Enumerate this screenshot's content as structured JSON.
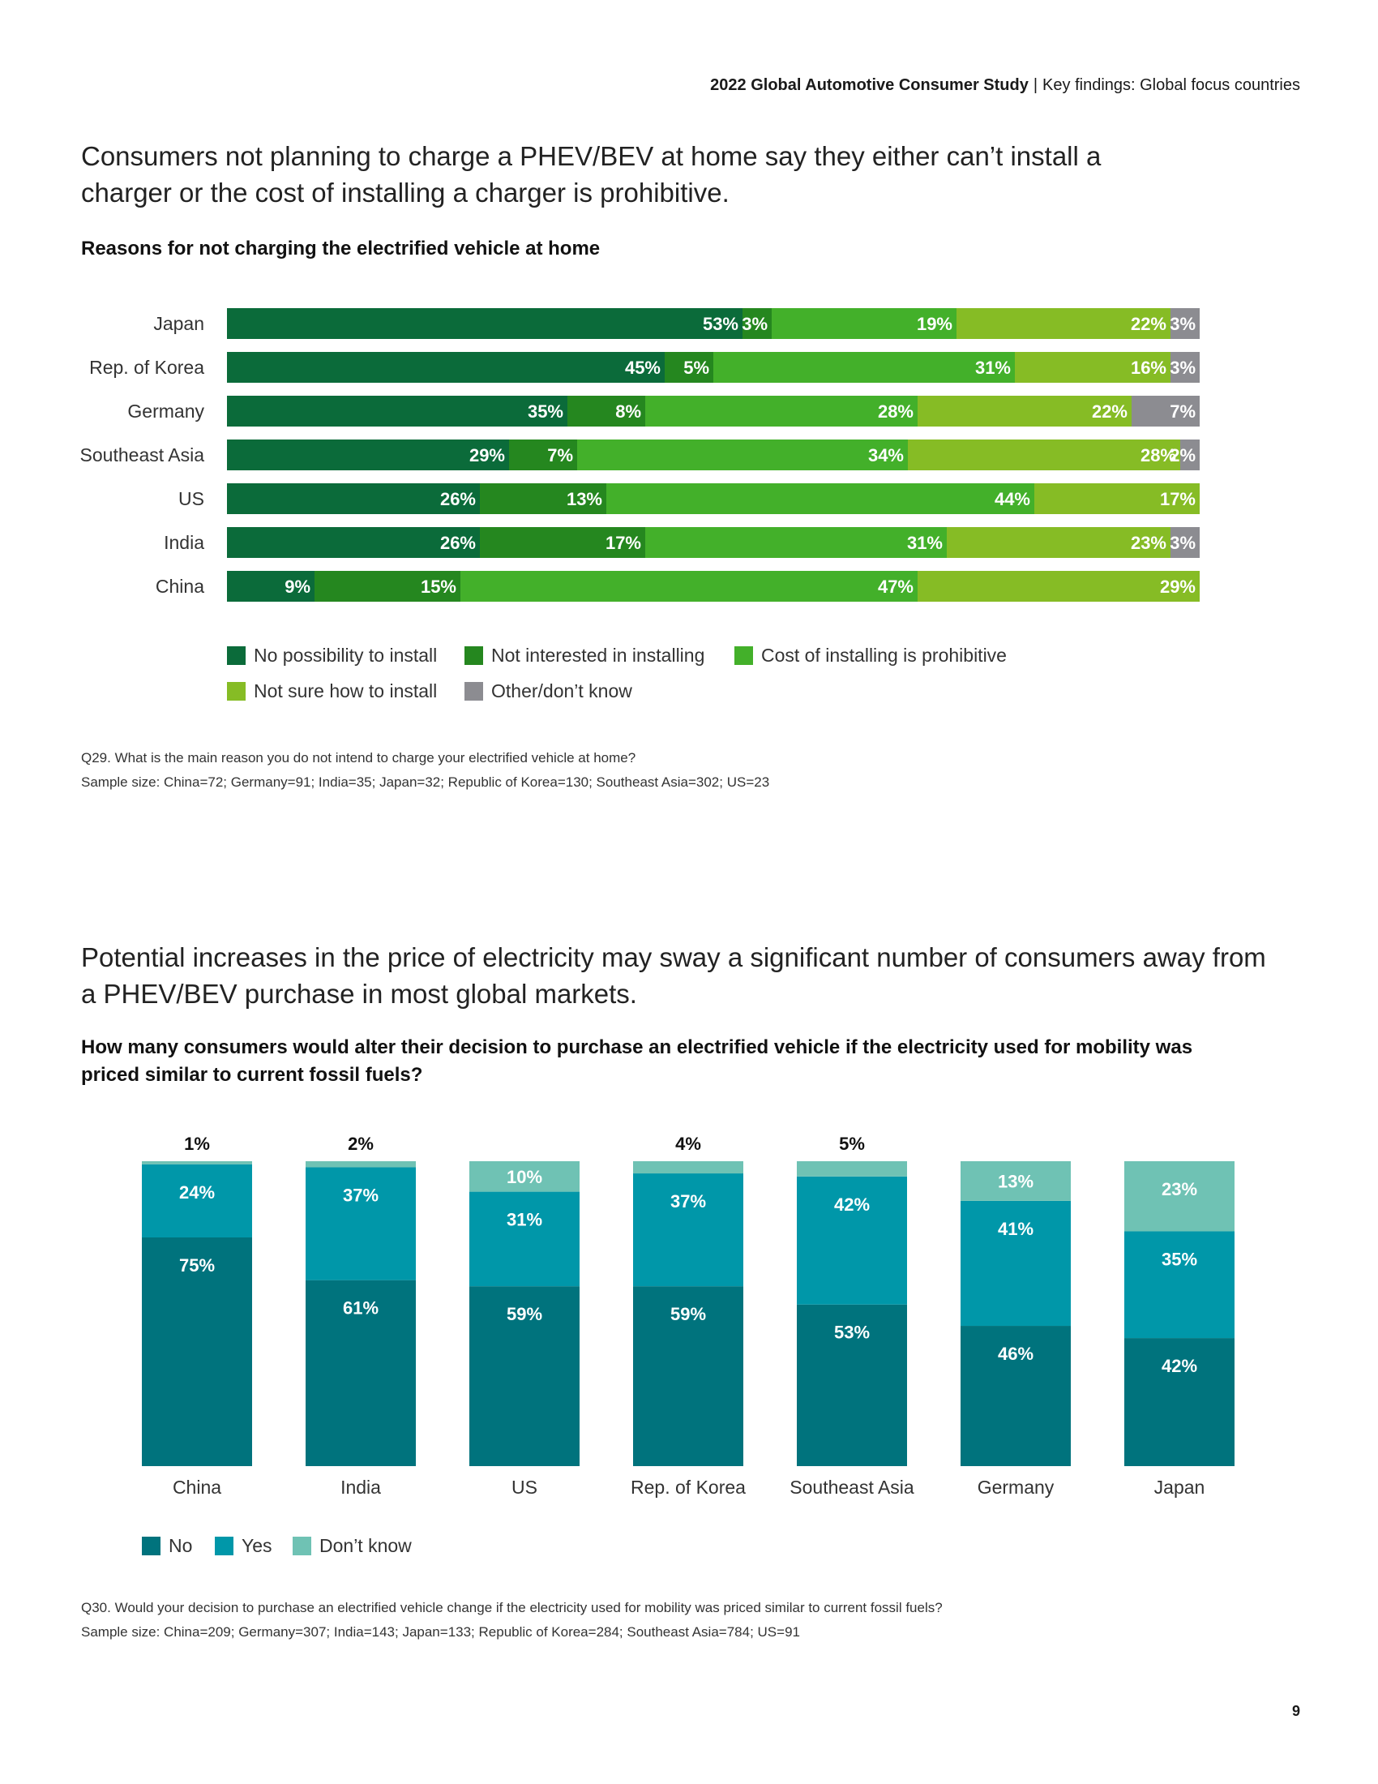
{
  "header": {
    "study": "2022 Global Automotive Consumer Study",
    "separator": "|",
    "section": "Key findings: Global focus countries"
  },
  "section1": {
    "headline_line1": "Consumers not planning to charge a PHEV/BEV at home say they either can’t install a",
    "headline_line2": "charger or the cost of installing a charger is prohibitive.",
    "subtitle": "Reasons for not charging the electrified vehicle at home",
    "note_question": "Q29. What is the main reason you do not intend to charge your electrified vehicle at home?",
    "note_sample": "Sample size: China=72; Germany=91; India=35; Japan=32; Republic of Korea=130; Southeast Asia=302; US=23"
  },
  "section2": {
    "headline_line1": "Potential increases in the price of electricity may sway a significant number of consumers away from",
    "headline_line2": "a PHEV/BEV purchase in most global markets.",
    "subtitle_line1": "How many consumers would alter their decision to purchase an electrified vehicle if the electricity used for mobility was",
    "subtitle_line2": "priced similar to current fossil fuels?",
    "note_question": "Q30. Would your decision to purchase an electrified vehicle change if the electricity used for mobility was priced similar to current fossil fuels?",
    "note_sample": "Sample size: China=209; Germany=307; India=143; Japan=133; Republic of Korea=284; Southeast Asia=784; US=91"
  },
  "page_number": "9",
  "chart_data": [
    {
      "type": "bar",
      "orientation": "horizontal",
      "stacked": true,
      "title": "Reasons for not charging the electrified vehicle at home",
      "categories": [
        "Japan",
        "Rep. of Korea",
        "Germany",
        "Southeast Asia",
        "US",
        "India",
        "China"
      ],
      "series": [
        {
          "name": "No possibility to install",
          "color": "#0b6b3a",
          "values": [
            53,
            45,
            35,
            29,
            26,
            26,
            9
          ]
        },
        {
          "name": "Not interested in installing",
          "color": "#25871f",
          "values": [
            3,
            5,
            8,
            7,
            13,
            17,
            15
          ]
        },
        {
          "name": "Cost of installing is prohibitive",
          "color": "#43b02a",
          "values": [
            19,
            31,
            28,
            34,
            44,
            31,
            47
          ]
        },
        {
          "name": "Not sure how to install",
          "color": "#86bc25",
          "values": [
            22,
            16,
            22,
            28,
            17,
            23,
            29
          ]
        },
        {
          "name": "Other/don’t know",
          "color": "#8c8c91",
          "values": [
            3,
            3,
            7,
            2,
            0,
            3,
            0
          ]
        }
      ],
      "value_suffix": "%",
      "xlim": [
        0,
        100
      ],
      "legend": "bottom"
    },
    {
      "type": "bar",
      "orientation": "vertical",
      "stacked": true,
      "title": "How many consumers would alter their decision to purchase an electrified vehicle if the electricity used for mobility was priced similar to current fossil fuels?",
      "categories": [
        "China",
        "India",
        "US",
        "Rep. of Korea",
        "Southeast Asia",
        "Germany",
        "Japan"
      ],
      "series": [
        {
          "name": "No",
          "color": "#00737d",
          "values": [
            75,
            61,
            59,
            59,
            53,
            46,
            42
          ]
        },
        {
          "name": "Yes",
          "color": "#0097a9",
          "values": [
            24,
            37,
            31,
            37,
            42,
            41,
            35
          ]
        },
        {
          "name": "Don’t know",
          "color": "#6fc2b4",
          "values": [
            1,
            2,
            10,
            4,
            5,
            13,
            23
          ]
        }
      ],
      "value_suffix": "%",
      "ylim": [
        0,
        100
      ],
      "legend": "bottom-left"
    }
  ]
}
